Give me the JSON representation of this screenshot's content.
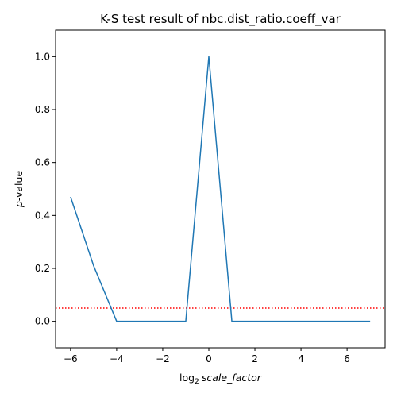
{
  "chart_data": {
    "type": "line",
    "title": "K-S test result of nbc.dist_ratio.coeff_var",
    "xlabel_prefix": "log",
    "xlabel_subscript": "2",
    "xlabel_italic": "scale_factor",
    "ylabel_italic": "p",
    "ylabel_rest": "-value",
    "x": [
      -6,
      -5,
      -4,
      -3,
      -2,
      -1,
      0,
      1,
      2,
      3,
      4,
      5,
      6,
      7
    ],
    "series": [
      {
        "values": [
          0.47,
          0.21,
          0.0,
          0.0,
          0.0,
          0.0,
          1.0,
          0.0,
          0.0,
          0.0,
          0.0,
          0.0,
          0.0,
          0.0
        ],
        "color": "#1f77b4"
      }
    ],
    "threshold": {
      "value": 0.05,
      "color": "#ff0000",
      "style": "dotted"
    },
    "xlim": [
      -6.65,
      7.65
    ],
    "ylim": [
      -0.1,
      1.1
    ],
    "xticks": [
      -6,
      -4,
      -2,
      0,
      2,
      4,
      6
    ],
    "xtick_labels": [
      "−6",
      "−4",
      "−2",
      "0",
      "2",
      "4",
      "6"
    ],
    "yticks": [
      0.0,
      0.2,
      0.4,
      0.6,
      0.8,
      1.0
    ],
    "ytick_labels": [
      "0.0",
      "0.2",
      "0.4",
      "0.6",
      "0.8",
      "1.0"
    ],
    "grid": false
  }
}
